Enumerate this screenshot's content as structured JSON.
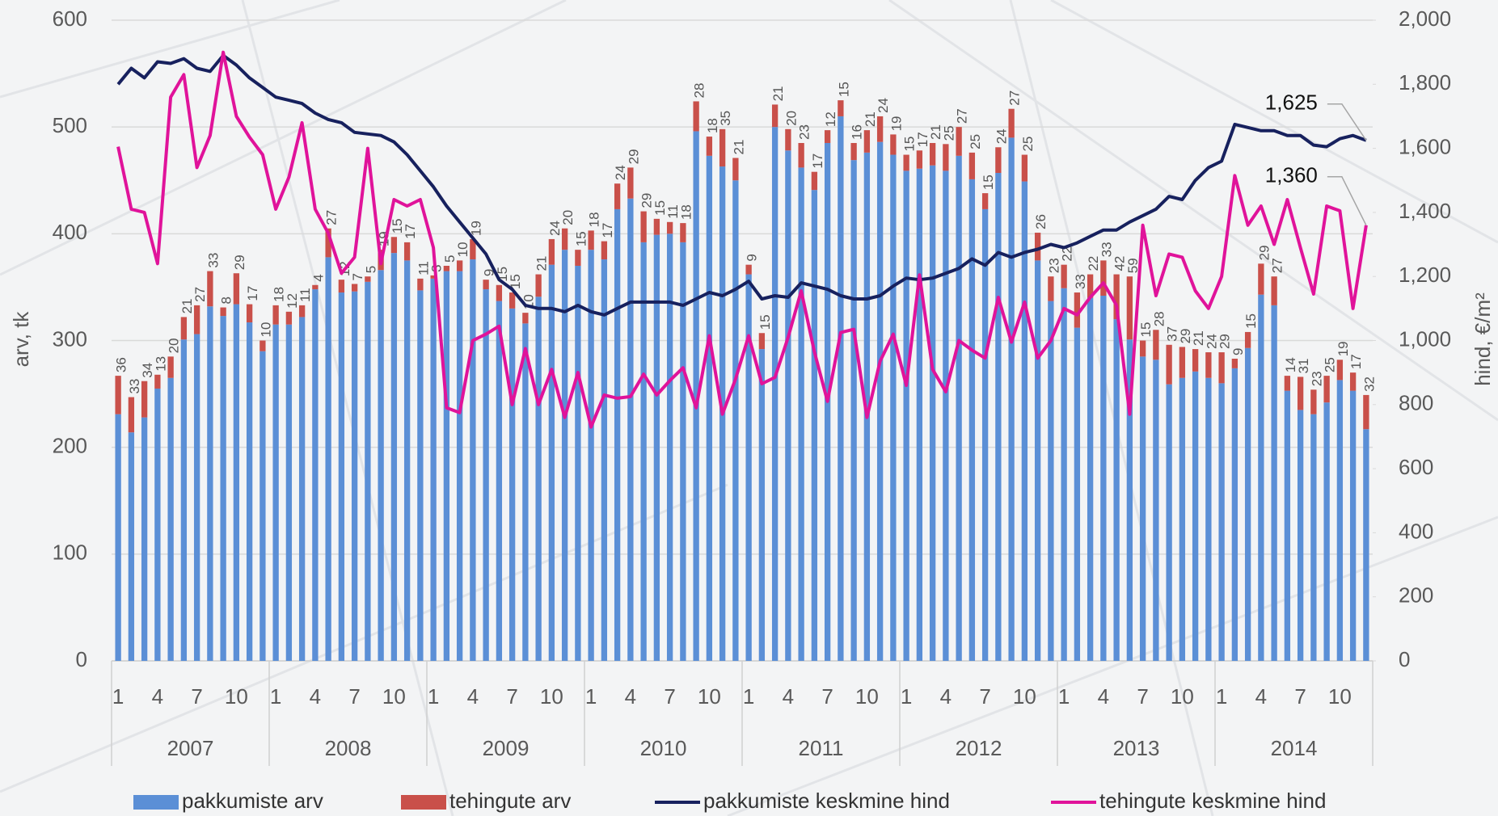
{
  "chart_data": {
    "type": "bar",
    "stacked": true,
    "categories": [
      1,
      null,
      null,
      4,
      null,
      null,
      7,
      null,
      null,
      10,
      null,
      null,
      1,
      null,
      null,
      4,
      null,
      null,
      7,
      null,
      null,
      10,
      null,
      null,
      1,
      null,
      null,
      4,
      null,
      null,
      7,
      null,
      null,
      10,
      null,
      null,
      1,
      null,
      null,
      4,
      null,
      null,
      7,
      null,
      null,
      10,
      null,
      null,
      1,
      null,
      null,
      4,
      null,
      null,
      7,
      null,
      null,
      10,
      null,
      null,
      1,
      null,
      null,
      4,
      null,
      null,
      7,
      null,
      null,
      10,
      null,
      null,
      1,
      null,
      null,
      4,
      null,
      null,
      7,
      null,
      null,
      10,
      null,
      null,
      1,
      null,
      null,
      4,
      null,
      null,
      7,
      null,
      null,
      10,
      null,
      null
    ],
    "groups": [
      "2007",
      "2008",
      "2009",
      "2010",
      "2011",
      "2012",
      "2013",
      "2014"
    ],
    "y_label": "arv, tk",
    "y2_label": "hind, €/m²",
    "ylim": [
      0,
      600
    ],
    "yticks": [
      0,
      100,
      200,
      300,
      400,
      500,
      600
    ],
    "y2lim": [
      0,
      2000
    ],
    "y2ticks": [
      0,
      200,
      400,
      600,
      800,
      {
        "value": 1000,
        "label": "1,000"
      },
      {
        "value": 1200,
        "label": "1,200"
      },
      {
        "value": 1400,
        "label": "1,400"
      },
      {
        "value": 1600,
        "label": "1,600"
      },
      {
        "value": 1800,
        "label": "1,800"
      },
      {
        "value": 2000,
        "label": "2,000"
      }
    ],
    "grid": true,
    "legend": "bottom",
    "series": [
      {
        "name": "pakkumiste arv",
        "type": "bar",
        "color": "#5b8fd6",
        "values": [
          231,
          214,
          228,
          255,
          265,
          301,
          306,
          332,
          323,
          334,
          317,
          290,
          315,
          315,
          322,
          348,
          378,
          345,
          346,
          355,
          366,
          382,
          375,
          347,
          358,
          365,
          365,
          376,
          348,
          337,
          330,
          316,
          341,
          371,
          385,
          370,
          385,
          376,
          423,
          433,
          392,
          399,
          400,
          392,
          496,
          473,
          463,
          450,
          362,
          292,
          500,
          478,
          462,
          441,
          485,
          510,
          469,
          476,
          486,
          474,
          459,
          461,
          464,
          459,
          473,
          451,
          423,
          457,
          490,
          449,
          375,
          337,
          349,
          312,
          340,
          342,
          320,
          301,
          285,
          282,
          259,
          265,
          271,
          265,
          260,
          274,
          293,
          343,
          333,
          253,
          235,
          231,
          242,
          263,
          253,
          217
        ]
      },
      {
        "name": "tehingute arv",
        "type": "bar",
        "color": "#c9504a",
        "data_labels": true,
        "values": [
          36,
          33,
          34,
          13,
          20,
          21,
          27,
          33,
          8,
          29,
          17,
          10,
          18,
          12,
          11,
          4,
          27,
          12,
          7,
          5,
          19,
          15,
          17,
          11,
          3,
          5,
          10,
          19,
          9,
          15,
          15,
          10,
          21,
          24,
          20,
          15,
          18,
          17,
          24,
          29,
          29,
          15,
          11,
          18,
          28,
          18,
          35,
          21,
          9,
          15,
          21,
          20,
          23,
          17,
          12,
          15,
          16,
          21,
          24,
          19,
          15,
          17,
          21,
          25,
          27,
          25,
          15,
          24,
          27,
          25,
          26,
          23,
          22,
          33,
          22,
          33,
          42,
          59,
          15,
          28,
          37,
          29,
          21,
          24,
          29,
          9,
          15,
          29,
          27,
          14,
          31,
          23,
          25,
          19,
          17,
          32
        ]
      },
      {
        "name": "pakkumiste keskmine hind",
        "type": "line",
        "axis": "y2",
        "color": "#17215e",
        "values": [
          1800,
          1850,
          1820,
          1870,
          1865,
          1880,
          1850,
          1840,
          1890,
          1860,
          1820,
          1790,
          1760,
          1750,
          1740,
          1710,
          1690,
          1680,
          1650,
          1645,
          1640,
          1620,
          1580,
          1530,
          1480,
          1420,
          1370,
          1320,
          1270,
          1190,
          1160,
          1110,
          1100,
          1100,
          1090,
          1110,
          1090,
          1080,
          1100,
          1120,
          1120,
          1120,
          1120,
          1110,
          1130,
          1150,
          1140,
          1160,
          1185,
          1130,
          1140,
          1135,
          1180,
          1170,
          1160,
          1140,
          1130,
          1130,
          1140,
          1170,
          1195,
          1190,
          1195,
          1210,
          1225,
          1255,
          1235,
          1275,
          1260,
          1275,
          1285,
          1300,
          1290,
          1305,
          1325,
          1345,
          1345,
          1370,
          1390,
          1410,
          1450,
          1440,
          1500,
          1540,
          1560,
          1675,
          1665,
          1655,
          1655,
          1640,
          1640,
          1610,
          1605,
          1630,
          1640,
          1625
        ],
        "value_labels": [
          null,
          null,
          null,
          null,
          null,
          null,
          null,
          null,
          null,
          null,
          null,
          null,
          null,
          null,
          null,
          null,
          null,
          null,
          null,
          null,
          null,
          null,
          null,
          null,
          null,
          null,
          null,
          null,
          null,
          null,
          null,
          null,
          null,
          null,
          null,
          null,
          null,
          null,
          null,
          null,
          null,
          null,
          null,
          null,
          null,
          null,
          null,
          null,
          null,
          null,
          null,
          null,
          null,
          null,
          null,
          null,
          null,
          null,
          null,
          null,
          null,
          null,
          null,
          null,
          null,
          null,
          null,
          null,
          null,
          null,
          null,
          null,
          null,
          null,
          null,
          null,
          null,
          null,
          null,
          null,
          null,
          null,
          null,
          null,
          null,
          null,
          null,
          null,
          null,
          null,
          null,
          null,
          null,
          null,
          null,
          "1,625"
        ]
      },
      {
        "name": "tehingute keskmine hind",
        "type": "line",
        "axis": "y2",
        "color": "#e0139a",
        "values": [
          1605,
          1410,
          1400,
          1240,
          1760,
          1830,
          1540,
          1640,
          1900,
          1700,
          1635,
          1580,
          1410,
          1510,
          1680,
          1410,
          1335,
          1210,
          1260,
          1600,
          1240,
          1440,
          1420,
          1440,
          1290,
          790,
          775,
          1000,
          1020,
          1045,
          800,
          975,
          800,
          910,
          760,
          900,
          730,
          830,
          820,
          825,
          895,
          830,
          875,
          915,
          790,
          1015,
          770,
          880,
          1015,
          865,
          885,
          1010,
          1155,
          965,
          810,
          1025,
          1035,
          760,
          935,
          1020,
          860,
          1205,
          910,
          840,
          1000,
          970,
          945,
          1135,
          995,
          1120,
          945,
          1000,
          1100,
          1080,
          1135,
          1180,
          1110,
          770,
          1360,
          1140,
          1270,
          1260,
          1155,
          1100,
          1200,
          1515,
          1360,
          1420,
          1300,
          1440,
          1290,
          1145,
          1420,
          1405,
          1100,
          1360
        ],
        "value_labels": [
          null,
          null,
          null,
          null,
          null,
          null,
          null,
          null,
          null,
          null,
          null,
          null,
          null,
          null,
          null,
          null,
          null,
          null,
          null,
          null,
          null,
          null,
          null,
          null,
          null,
          null,
          null,
          null,
          null,
          null,
          null,
          null,
          null,
          null,
          null,
          null,
          null,
          null,
          null,
          null,
          null,
          null,
          null,
          null,
          null,
          null,
          null,
          null,
          null,
          null,
          null,
          null,
          null,
          null,
          null,
          null,
          null,
          null,
          null,
          null,
          null,
          null,
          null,
          null,
          null,
          null,
          null,
          null,
          null,
          null,
          null,
          null,
          null,
          null,
          null,
          null,
          null,
          null,
          null,
          null,
          null,
          null,
          null,
          null,
          null,
          null,
          null,
          null,
          null,
          null,
          null,
          null,
          null,
          null,
          null,
          "1,360"
        ]
      }
    ]
  }
}
